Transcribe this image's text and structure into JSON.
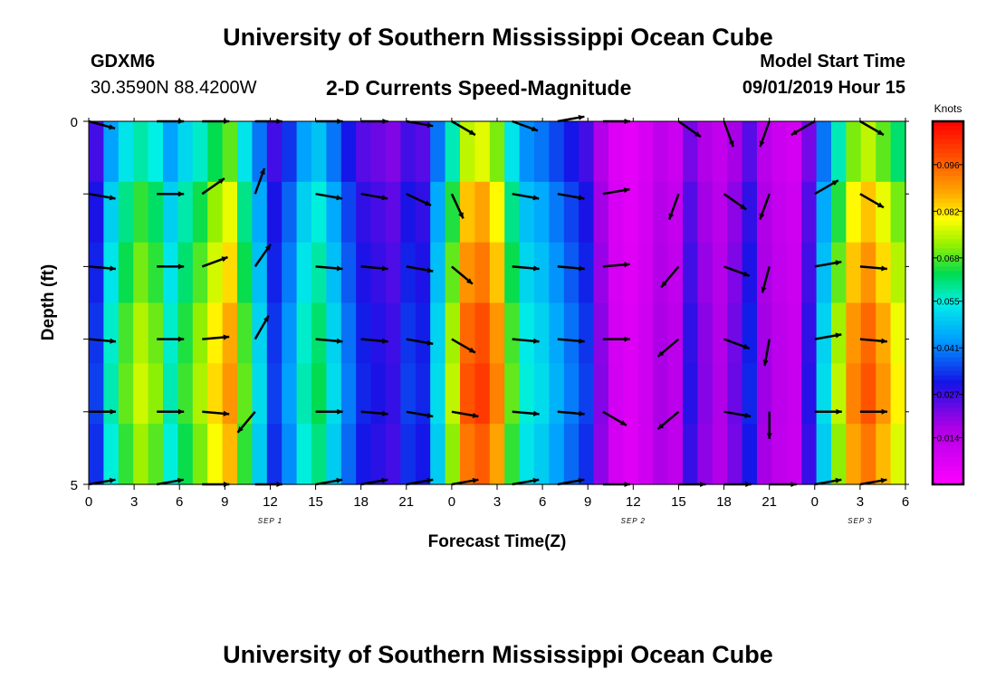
{
  "header": {
    "title": "University of Southern Mississippi Ocean Cube",
    "station_id": "GDXM6",
    "station_coords": "30.3590N 88.4200W",
    "subtitle": "2-D Currents Speed-Magnitude",
    "model_start_label": "Model Start Time",
    "model_start_value": "09/01/2019 Hour 15"
  },
  "footer": {
    "title": "University of Southern Mississippi Ocean Cube"
  },
  "chart_data": {
    "type": "heatmap",
    "title": "2-D Currents Speed-Magnitude",
    "xlabel": "Forecast Time(Z)",
    "ylabel": "Depth (ft)",
    "ylim": [
      0,
      5
    ],
    "y_tick_labels": [
      {
        "value": 0,
        "label": "0"
      },
      {
        "value": 5,
        "label": "5"
      }
    ],
    "x_ticks": [
      "0",
      "3",
      "6",
      "9",
      "12",
      "15",
      "18",
      "21",
      "0",
      "3",
      "6",
      "9",
      "12",
      "15",
      "18",
      "21",
      "0",
      "3",
      "6"
    ],
    "x_tick_hours": [
      0,
      3,
      6,
      9,
      12,
      15,
      18,
      21,
      24,
      27,
      30,
      33,
      36,
      39,
      42,
      45,
      48,
      51,
      54
    ],
    "xlim_hours": [
      0,
      54
    ],
    "date_labels": [
      {
        "hour": 12,
        "label": "SEP 1"
      },
      {
        "hour": 36,
        "label": "SEP 2"
      },
      {
        "hour": 51,
        "label": "SEP 3"
      }
    ],
    "colorbar": {
      "unit": "Knots",
      "range": [
        0.0,
        0.109
      ],
      "ticks": [
        "0.014",
        "0.027",
        "0.041",
        "0.055",
        "0.068",
        "0.082",
        "0.096"
      ]
    },
    "depth_rows": [
      0,
      1,
      2,
      3,
      4,
      5
    ],
    "speed_profile": [
      0.03,
      0.05,
      0.06,
      0.066,
      0.062,
      0.05,
      0.058,
      0.064,
      0.072,
      0.078,
      0.06,
      0.045,
      0.03,
      0.038,
      0.05,
      0.055,
      0.045,
      0.035,
      0.028,
      0.026,
      0.024,
      0.03,
      0.028,
      0.045,
      0.065,
      0.085,
      0.088,
      0.08,
      0.06,
      0.048,
      0.045,
      0.04,
      0.035,
      0.03,
      0.018,
      0.008,
      0.006,
      0.009,
      0.015,
      0.012,
      0.025,
      0.018,
      0.014,
      0.02,
      0.028,
      0.016,
      0.012,
      0.01,
      0.025,
      0.045,
      0.065,
      0.08,
      0.085,
      0.078,
      0.07
    ],
    "depth_factors": [
      0.88,
      1.0,
      1.06,
      1.12,
      1.15,
      1.1
    ],
    "vector_hours": [
      0,
      4.5,
      7.5,
      11,
      15,
      18,
      21,
      24,
      28,
      31,
      34,
      39,
      42,
      45,
      48,
      51
    ],
    "vector_directions_deg": [
      [
        105,
        90,
        90,
        90,
        90,
        90,
        100,
        120,
        110,
        80,
        90,
        125,
        160,
        200,
        240,
        120
      ],
      [
        100,
        90,
        55,
        20,
        100,
        100,
        115,
        155,
        100,
        100,
        80,
        200,
        125,
        200,
        60,
        120
      ],
      [
        95,
        90,
        70,
        35,
        95,
        95,
        100,
        130,
        95,
        95,
        85,
        220,
        110,
        195,
        80,
        95
      ],
      [
        95,
        90,
        85,
        30,
        95,
        95,
        100,
        120,
        95,
        95,
        90,
        230,
        110,
        190,
        80,
        95
      ],
      [
        90,
        90,
        95,
        220,
        90,
        95,
        100,
        100,
        95,
        95,
        120,
        230,
        100,
        180,
        90,
        90
      ],
      [
        80,
        80,
        90,
        90,
        80,
        80,
        80,
        80,
        80,
        80,
        90,
        90,
        90,
        90,
        80,
        80
      ]
    ]
  }
}
